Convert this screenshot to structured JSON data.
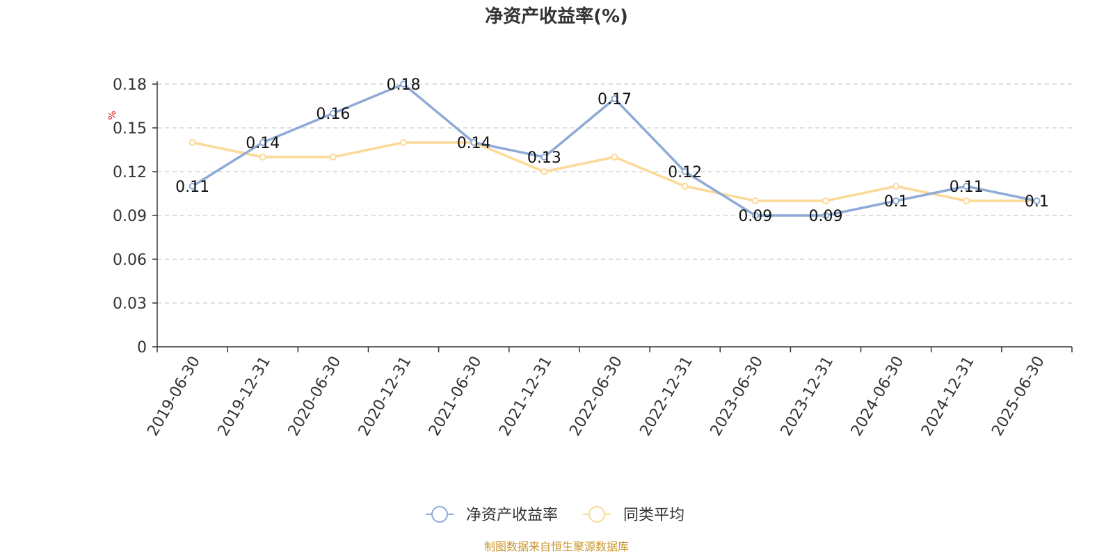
{
  "chart_data": {
    "type": "line",
    "title": "净资产收益率(%)",
    "ylabel": "%",
    "xlabel": "",
    "categories": [
      "2019-06-30",
      "2019-12-31",
      "2020-06-30",
      "2020-12-31",
      "2021-06-30",
      "2021-12-31",
      "2022-06-30",
      "2022-12-31",
      "2023-06-30",
      "2023-12-31",
      "2024-06-30",
      "2024-12-31",
      "2025-06-30"
    ],
    "ylim": [
      0,
      0.18
    ],
    "yticks": [
      "0",
      "0.03",
      "0.06",
      "0.09",
      "0.12",
      "0.15",
      "0.18"
    ],
    "grid": true,
    "legend_position": "bottom-center",
    "series": [
      {
        "name": "净资产收益率",
        "color": "#8eaad6",
        "values": [
          0.11,
          0.14,
          0.16,
          0.18,
          0.14,
          0.13,
          0.17,
          0.12,
          0.09,
          0.09,
          0.1,
          0.11,
          0.1
        ],
        "labels": [
          "0.11",
          "0.14",
          "0.16",
          "0.18",
          "0.14",
          "0.13",
          "0.17",
          "0.12",
          "0.09",
          "0.09",
          "0.1",
          "0.11",
          "0.1"
        ]
      },
      {
        "name": "同类平均",
        "color": "#fbd997",
        "values": [
          0.14,
          0.13,
          0.13,
          0.14,
          0.14,
          0.12,
          0.13,
          0.11,
          0.1,
          0.1,
          0.11,
          0.1,
          0.1
        ]
      }
    ],
    "source": "制图数据来自恒生聚源数据库"
  },
  "colors": {
    "axis": "#333333",
    "grid": "#cccccc",
    "ylabel": "#e02020",
    "source": "#c8962e"
  }
}
